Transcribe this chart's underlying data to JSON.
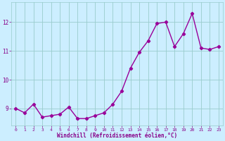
{
  "x": [
    0,
    1,
    2,
    3,
    4,
    5,
    6,
    7,
    8,
    9,
    10,
    11,
    12,
    13,
    14,
    15,
    16,
    17,
    18,
    19,
    20,
    21,
    22,
    23
  ],
  "y": [
    9.0,
    8.85,
    9.15,
    8.7,
    8.75,
    8.8,
    9.05,
    8.65,
    8.65,
    8.75,
    8.85,
    9.15,
    9.6,
    10.4,
    10.95,
    11.35,
    11.95,
    12.0,
    11.15,
    11.6,
    12.3,
    11.1,
    11.05,
    11.15
  ],
  "line_color": "#990099",
  "marker": "D",
  "markersize": 2.2,
  "linewidth": 1.0,
  "xlabel": "Windchill (Refroidissement éolien,°C)",
  "xlim": [
    -0.5,
    23.5
  ],
  "ylim": [
    8.4,
    12.7
  ],
  "yticks": [
    9,
    10,
    11,
    12
  ],
  "xticks": [
    0,
    1,
    2,
    3,
    4,
    5,
    6,
    7,
    8,
    9,
    10,
    11,
    12,
    13,
    14,
    15,
    16,
    17,
    18,
    19,
    20,
    21,
    22,
    23
  ],
  "bg_color": "#cceeff",
  "grid_color": "#99cccc",
  "tick_color": "#880088",
  "label_color": "#880088"
}
